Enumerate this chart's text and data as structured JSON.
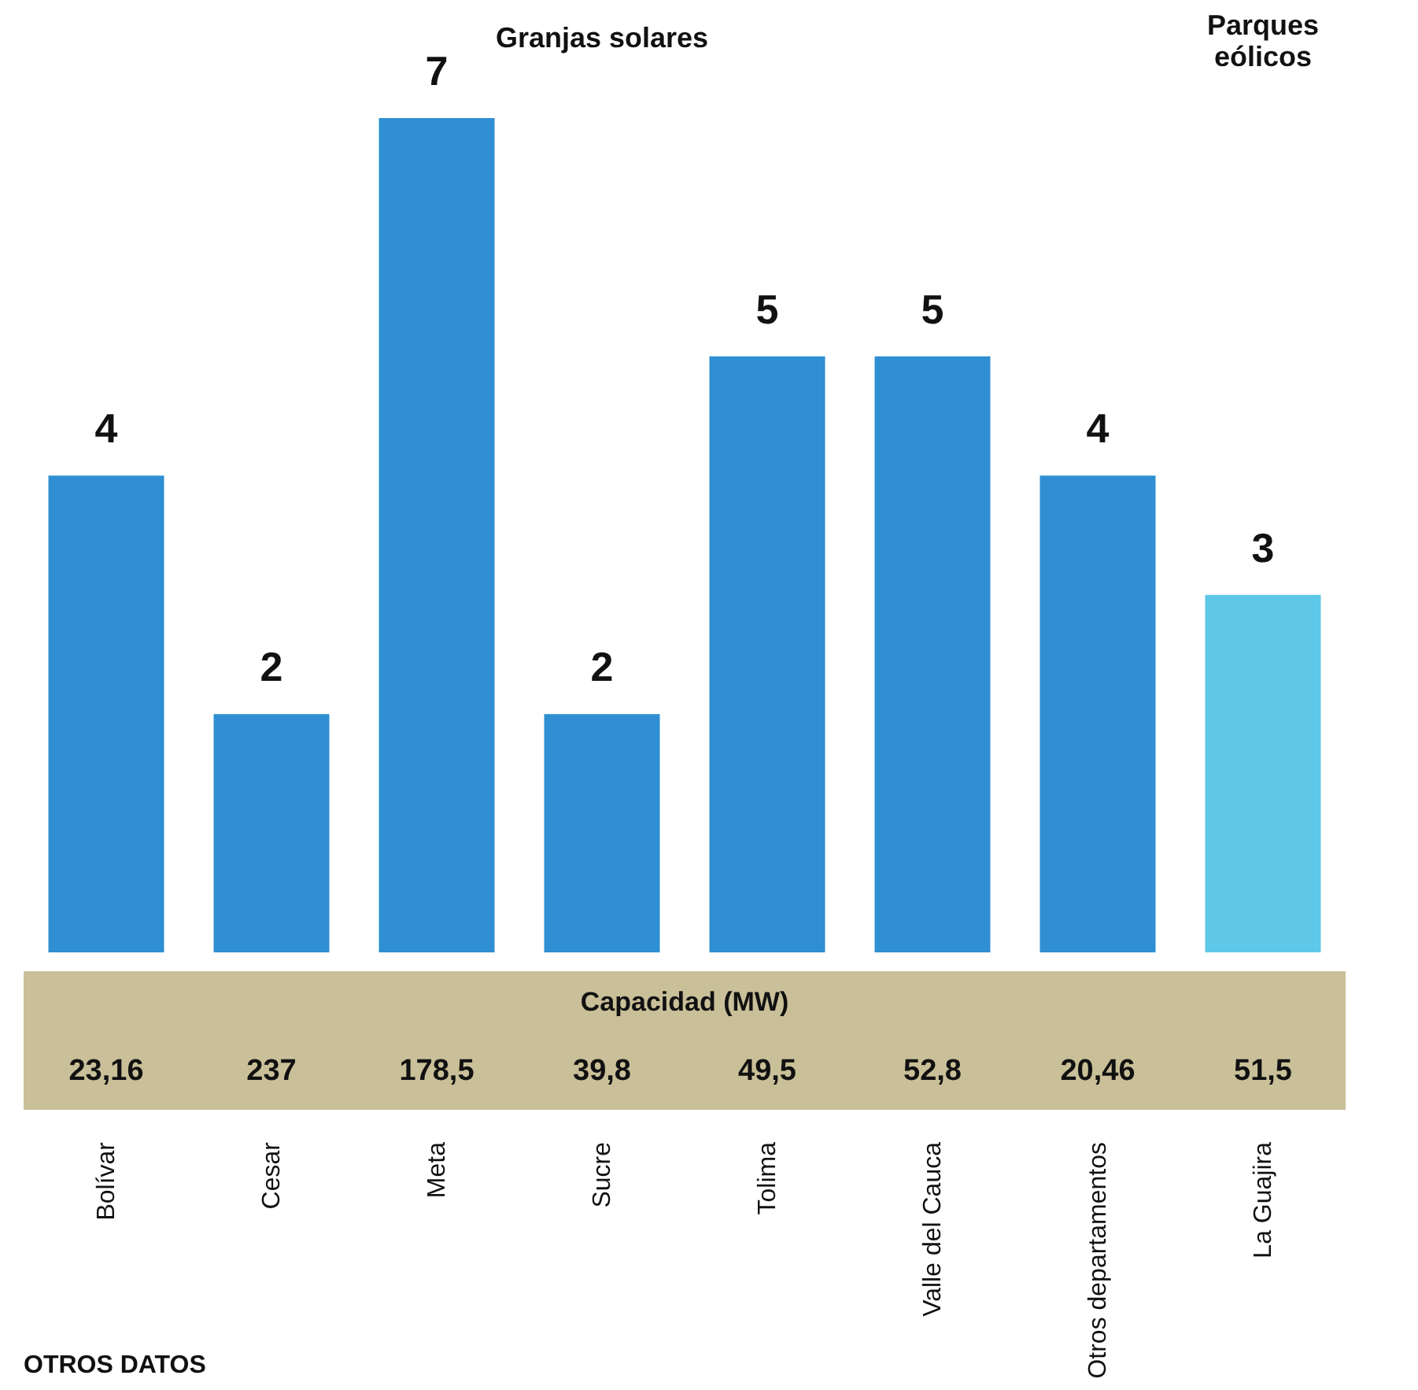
{
  "chart_data": {
    "type": "bar",
    "categories": [
      "Bolívar",
      "Cesar",
      "Meta",
      "Sucre",
      "Tolima",
      "Valle del Cauca",
      "Otros departamentos",
      "La Guajira"
    ],
    "values": [
      4,
      2,
      7,
      2,
      5,
      5,
      4,
      3
    ],
    "colors": [
      "#2f8fd2",
      "#2f8fd2",
      "#2f8fd2",
      "#2f8fd2",
      "#2f8fd2",
      "#2f8fd2",
      "#2f8fd2",
      "#5fc8e8"
    ],
    "data_labels": true,
    "grid": false,
    "legend": false,
    "annotations": [
      "Granjas solares",
      "Parques eólicos",
      "Capacidad (MW)",
      "23,16",
      "237",
      "178,5",
      "39,8",
      "49,5",
      "52,8",
      "20,46",
      "51,5",
      "OTROS DATOS"
    ]
  }
}
